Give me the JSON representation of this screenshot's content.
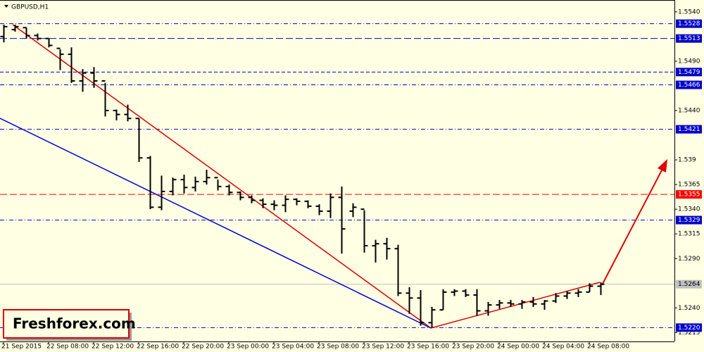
{
  "chart_data": {
    "type": "ohlc",
    "title": "GBPUSD,H1",
    "watermark": "Freshforex.com",
    "categories": [
      "21 Sep 2015",
      null,
      null,
      null,
      "22 Sep 08:00",
      null,
      null,
      null,
      "22 Sep 12:00",
      null,
      null,
      null,
      "22 Sep 16:00",
      null,
      null,
      null,
      "22 Sep 20:00",
      null,
      null,
      null,
      "23 Sep 00:00",
      null,
      null,
      null,
      "23 Sep 04:00",
      null,
      null,
      null,
      "23 Sep 08:00",
      null,
      null,
      null,
      "23 Sep 12:00",
      null,
      null,
      null,
      "23 Sep 16:00",
      null,
      null,
      null,
      "23 Sep 20:00",
      null,
      null,
      null,
      "24 Sep 00:00",
      null,
      null,
      null,
      "24 Sep 04:00",
      null,
      null,
      null,
      "24 Sep 08:00",
      null
    ],
    "open": [
      1.5515,
      1.5522,
      1.5524,
      1.5516,
      1.5513,
      1.5503,
      1.5497,
      1.547,
      1.5478,
      1.547,
      1.544,
      1.5436,
      1.5432,
      1.5392,
      1.5342,
      1.5358,
      1.537,
      1.5362,
      1.5368,
      1.5372,
      1.5363,
      1.5357,
      1.5352,
      1.5349,
      1.5345,
      1.5344,
      1.535,
      1.5348,
      1.5343,
      1.5338,
      1.5352,
      1.5338,
      1.534,
      1.5303,
      1.5305,
      1.53,
      1.5255,
      1.525,
      1.5225,
      1.5238,
      1.5256,
      1.5257,
      1.5253,
      1.5237,
      1.5243,
      1.5245,
      1.5244,
      1.5246,
      1.5244,
      1.5247,
      1.5252,
      1.5255,
      1.5256,
      1.5262
    ],
    "high": [
      1.5527,
      1.5527,
      1.5524,
      1.5518,
      1.5513,
      1.5502,
      1.5504,
      1.5482,
      1.5484,
      1.5468,
      1.5441,
      1.5446,
      1.5432,
      1.5394,
      1.5374,
      1.5372,
      1.5375,
      1.5373,
      1.538,
      1.537,
      1.5365,
      1.5358,
      1.5354,
      1.5351,
      1.5349,
      1.5354,
      1.5351,
      1.5349,
      1.5345,
      1.5356,
      1.5363,
      1.5346,
      1.5339,
      1.5309,
      1.5311,
      1.5304,
      1.5261,
      1.5258,
      1.5241,
      1.5259,
      1.5259,
      1.5259,
      1.5259,
      1.5246,
      1.5248,
      1.5248,
      1.5248,
      1.5251,
      1.5248,
      1.5255,
      1.5257,
      1.5259,
      1.5265,
      1.5266
    ],
    "low": [
      1.5509,
      1.552,
      1.5513,
      1.5511,
      1.5504,
      1.5481,
      1.5468,
      1.5459,
      1.5463,
      1.5434,
      1.543,
      1.5429,
      1.5388,
      1.534,
      1.5339,
      1.5354,
      1.5356,
      1.5358,
      1.5365,
      1.5359,
      1.5354,
      1.5349,
      1.5346,
      1.5341,
      1.5339,
      1.5337,
      1.5344,
      1.5341,
      1.5334,
      1.5331,
      1.5295,
      1.5332,
      1.5296,
      1.5286,
      1.5289,
      1.5252,
      1.5234,
      1.5222,
      1.522,
      1.5238,
      1.5252,
      1.5251,
      1.5232,
      1.5232,
      1.5239,
      1.5241,
      1.5239,
      1.5241,
      1.5238,
      1.5245,
      1.5249,
      1.5251,
      1.5256,
      1.5253
    ],
    "close": [
      1.5525,
      1.5525,
      1.5516,
      1.5513,
      1.5506,
      1.5497,
      1.547,
      1.5478,
      1.547,
      1.544,
      1.5436,
      1.5432,
      1.5392,
      1.5342,
      1.5358,
      1.537,
      1.5362,
      1.5368,
      1.5372,
      1.5363,
      1.5357,
      1.5352,
      1.5349,
      1.5345,
      1.5344,
      1.535,
      1.5348,
      1.5343,
      1.5338,
      1.5352,
      1.532,
      1.5342,
      1.5303,
      1.5305,
      1.53,
      1.5255,
      1.525,
      1.5225,
      1.5238,
      1.5256,
      1.5257,
      1.5253,
      1.5237,
      1.5243,
      1.5245,
      1.5244,
      1.5246,
      1.5244,
      1.5247,
      1.5252,
      1.5255,
      1.5256,
      1.5262,
      1.5264
    ],
    "color": "#000000",
    "ylim": [
      1.5206,
      1.5552
    ],
    "yticks": [
      {
        "value": 1.554,
        "label": "1.5540"
      },
      {
        "value": 1.549,
        "label": "1.5490"
      },
      {
        "value": 1.544,
        "label": "1.5440"
      },
      1.539,
      1.5365,
      {
        "value": 1.534,
        "label": "1.5340"
      },
      1.5315,
      {
        "value": 1.529,
        "label": "1.5290"
      },
      {
        "value": 1.524,
        "label": "1.5240"
      },
      1.5215
    ],
    "levels": [
      {
        "value": 1.5528,
        "label": "1.5528",
        "color": "#0000cc",
        "style": "dashdot"
      },
      {
        "value": 1.5513,
        "label": "1.5513",
        "color": "#0000cc",
        "style": "longdash"
      },
      {
        "value": 1.5479,
        "label": "1.5479",
        "color": "#0000cc",
        "style": "dash"
      },
      {
        "value": 1.5466,
        "label": "1.5466",
        "color": "#0000cc",
        "style": "dashdot"
      },
      {
        "value": 1.5421,
        "label": "1.5421",
        "color": "#0000cc",
        "style": "dashdot"
      },
      {
        "value": 1.5355,
        "label": "1.5355",
        "color": "#ff0000",
        "style": "longdash"
      },
      {
        "value": 1.5329,
        "label": "1.5329",
        "color": "#0000cc",
        "style": "dashdot"
      },
      {
        "value": 1.5264,
        "label": "1.5264",
        "color": "#c0c0c0",
        "style": "solid"
      },
      {
        "value": 1.522,
        "label": "1.5220",
        "color": "#0000cc",
        "style": "dashdot"
      }
    ]
  }
}
